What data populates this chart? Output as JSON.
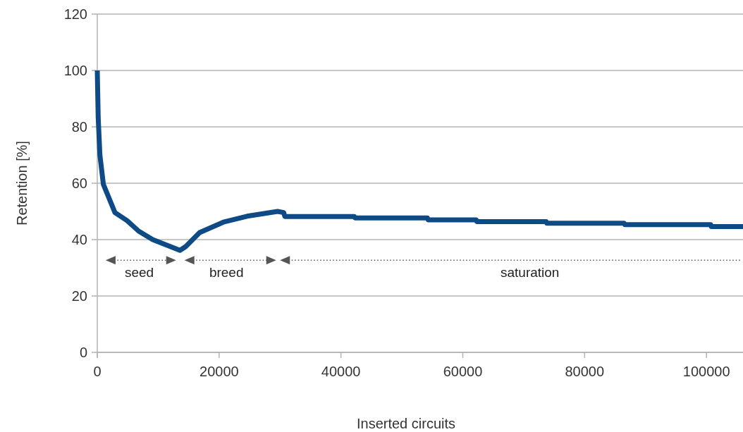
{
  "chart_data": {
    "type": "line",
    "xlabel": "Inserted circuits",
    "ylabel": "Retention [%]",
    "xlim": [
      0,
      106000
    ],
    "xticks": [
      0,
      20000,
      40000,
      60000,
      80000,
      100000
    ],
    "ylim": [
      0,
      120
    ],
    "yticks": [
      0,
      20,
      40,
      60,
      80,
      100,
      120
    ],
    "grid": "y",
    "line_style": "solid",
    "marker": "none",
    "series": [
      {
        "color": "#0d4a86",
        "x": [
          0,
          150,
          430,
          1000,
          2900,
          4900,
          6800,
          9100,
          11450,
          13570,
          14500,
          16800,
          20700,
          24600,
          29600,
          30600,
          30800,
          42200,
          42300,
          54200,
          54300,
          62200,
          62300,
          73700,
          73800,
          86500,
          86600,
          100700,
          100800,
          106000
        ],
        "values": [
          100,
          83.3,
          70,
          59.6,
          49.6,
          46.7,
          43,
          40,
          38,
          36.2,
          37.5,
          42.5,
          46.2,
          48.3,
          50,
          49.6,
          48.2,
          48.2,
          47.7,
          47.7,
          47,
          47,
          46.4,
          46.4,
          45.8,
          45.8,
          45.3,
          45.3,
          44.6,
          44.6
        ]
      }
    ],
    "annotations": [
      "seed",
      "breed",
      "saturation"
    ]
  }
}
